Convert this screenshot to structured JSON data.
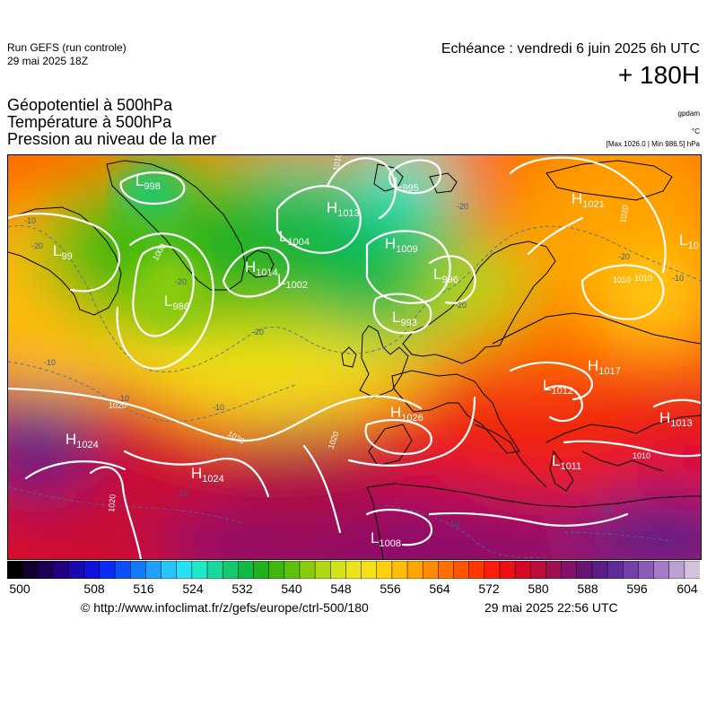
{
  "header": {
    "run_title": "Run GEFS (run controle)",
    "run_date": "29 mai 2025 18Z",
    "echeance": "Echéance : vendredi 6 juin 2025 6h UTC",
    "lead": "+ 180H"
  },
  "titles": {
    "line1": "Géopotentiel à 500hPa",
    "line2": "Température à 500hPa",
    "line3": "Pression au niveau de la mer"
  },
  "units": {
    "gpdam": "gpdam",
    "celsius": "°C",
    "maxmin": "[Max 1026.0 | Min 986.5] hPa"
  },
  "colorbar": {
    "ticks": [
      "500",
      "508",
      "516",
      "524",
      "532",
      "540",
      "548",
      "556",
      "564",
      "572",
      "580",
      "588",
      "596",
      "604"
    ],
    "colors": [
      "#000000",
      "#10002e",
      "#1a0055",
      "#200080",
      "#1b08b0",
      "#1010d8",
      "#0a2cf2",
      "#0b50f5",
      "#1478f8",
      "#1ea0fb",
      "#28c4fc",
      "#28e0f4",
      "#20e8c8",
      "#18d89c",
      "#14c870",
      "#10b848",
      "#20b020",
      "#40b810",
      "#60c010",
      "#88cc10",
      "#b0d818",
      "#d4e21c",
      "#eae41c",
      "#f8e018",
      "#ffd010",
      "#ffbc08",
      "#ffa400",
      "#ff8c00",
      "#ff7000",
      "#ff5400",
      "#ff3800",
      "#fa1e0a",
      "#ea1016",
      "#d40826",
      "#bc0c3a",
      "#a01050",
      "#841068",
      "#681474",
      "#5a1c86",
      "#602a98",
      "#7240a8",
      "#8a5cb8",
      "#a47cc6",
      "#bca0d2",
      "#d2c2de"
    ]
  },
  "map": {
    "pressure_labels": [
      {
        "type": "L",
        "value": "998"
      },
      {
        "type": "L",
        "value": "99"
      },
      {
        "type": "L",
        "value": "986"
      },
      {
        "type": "L",
        "value": "1004"
      },
      {
        "type": "H",
        "value": "1013"
      },
      {
        "type": "L",
        "value": "995"
      },
      {
        "type": "H",
        "value": "1009"
      },
      {
        "type": "L",
        "value": "996"
      },
      {
        "type": "H",
        "value": "1014"
      },
      {
        "type": "L",
        "value": "1002"
      },
      {
        "type": "L",
        "value": "993"
      },
      {
        "type": "H",
        "value": "1021"
      },
      {
        "type": "L",
        "value": "10"
      },
      {
        "type": "H",
        "value": "1017"
      },
      {
        "type": "L",
        "value": "1012"
      },
      {
        "type": "H",
        "value": "1026"
      },
      {
        "type": "H",
        "value": "1013"
      },
      {
        "type": "H",
        "value": "1024"
      },
      {
        "type": "H",
        "value": "1024"
      },
      {
        "type": "L",
        "value": "1011"
      },
      {
        "type": "L",
        "value": "1008"
      }
    ],
    "isobar_labels": [
      "1000",
      "1010",
      "1020",
      "1020",
      "1020",
      "1020",
      "1020",
      "1010",
      "1010",
      "1010"
    ],
    "isotherm_labels": [
      "-10",
      "-20",
      "-20",
      "-10",
      "-10",
      "-20",
      "-10",
      "-20",
      "-20",
      "-20",
      "-10",
      "-10",
      "-10",
      "-10"
    ]
  },
  "footer": {
    "url": "© http://www.infoclimat.fr/z/gefs/europe/ctrl-500/180",
    "date": "29 mai 2025 22:56 UTC"
  }
}
